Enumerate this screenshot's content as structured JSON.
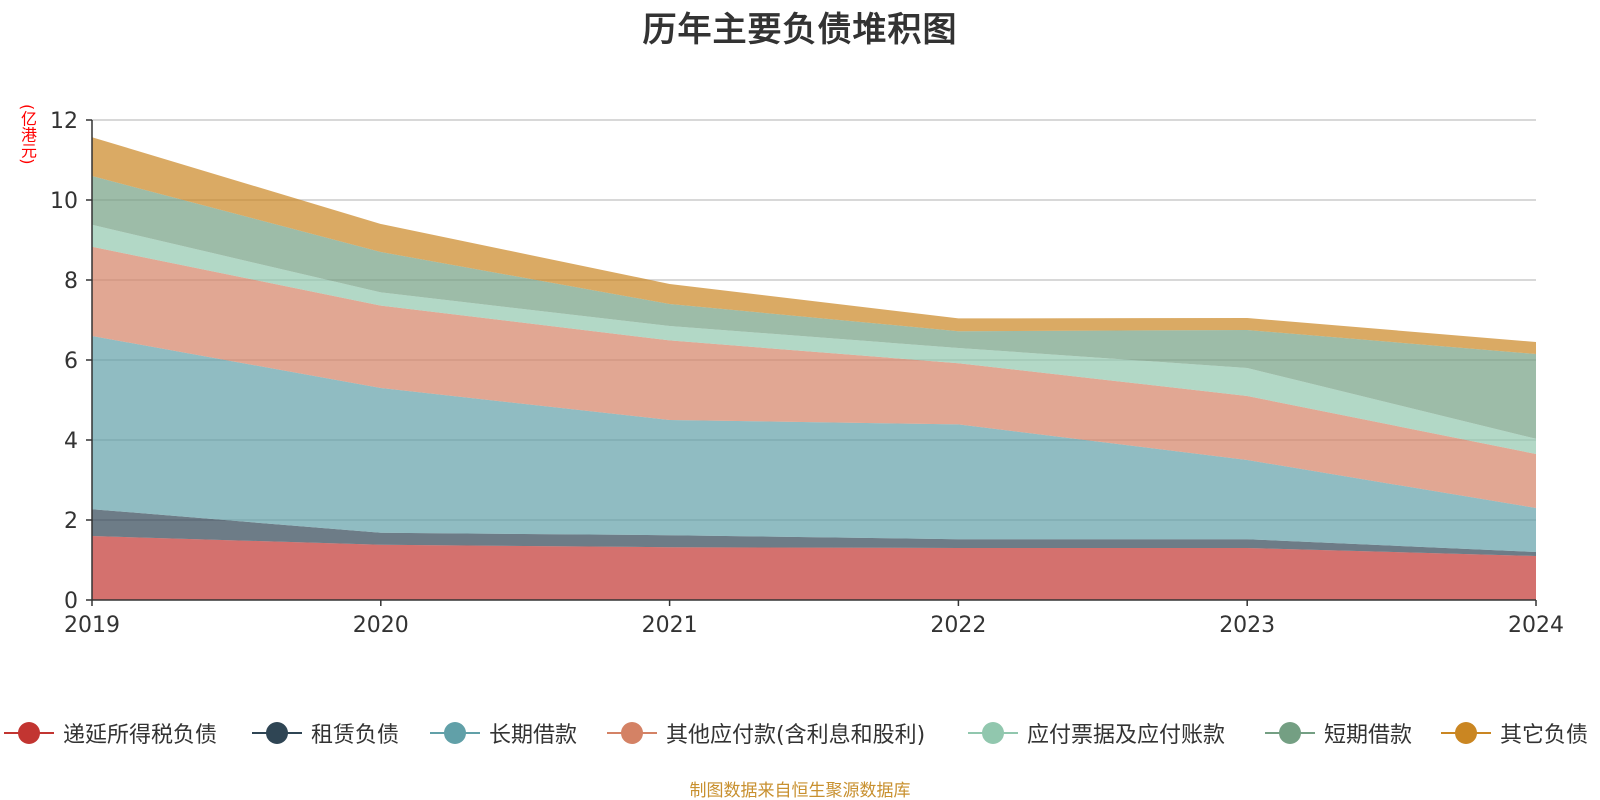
{
  "chart_data": {
    "type": "area",
    "title": "历年主要负债堆积图",
    "unit_label": "(亿港元)",
    "x": [
      "2019",
      "2020",
      "2021",
      "2022",
      "2023",
      "2024"
    ],
    "ylim": [
      0,
      12
    ],
    "yticks": [
      "0",
      "2",
      "4",
      "6",
      "8",
      "10",
      "12"
    ],
    "grid": true,
    "stacked": true,
    "legend_position": "bottom",
    "series": [
      {
        "name": "递延所得税负债",
        "color": "#c23531",
        "values": [
          1.6,
          1.38,
          1.32,
          1.3,
          1.3,
          1.1
        ]
      },
      {
        "name": "租赁负债",
        "color": "#2f4554",
        "values": [
          0.67,
          0.3,
          0.3,
          0.22,
          0.22,
          0.1
        ]
      },
      {
        "name": "长期借款",
        "color": "#61a0a8",
        "values": [
          4.33,
          3.62,
          2.88,
          2.87,
          1.98,
          1.1
        ]
      },
      {
        "name": "其他应付款(含利息和股利)",
        "color": "#d48265",
        "values": [
          2.23,
          2.06,
          1.99,
          1.53,
          1.6,
          1.35
        ]
      },
      {
        "name": "应付票据及应付账款",
        "color": "#91c7ae",
        "values": [
          0.55,
          0.33,
          0.36,
          0.38,
          0.7,
          0.38
        ]
      },
      {
        "name": "短期借款",
        "color": "#749f83",
        "values": [
          1.22,
          1.01,
          0.55,
          0.42,
          0.95,
          2.12
        ]
      },
      {
        "name": "其它负债",
        "color": "#ca8622",
        "values": [
          0.97,
          0.7,
          0.5,
          0.32,
          0.3,
          0.3
        ]
      }
    ]
  },
  "source_note": "制图数据来自恒生聚源数据库"
}
